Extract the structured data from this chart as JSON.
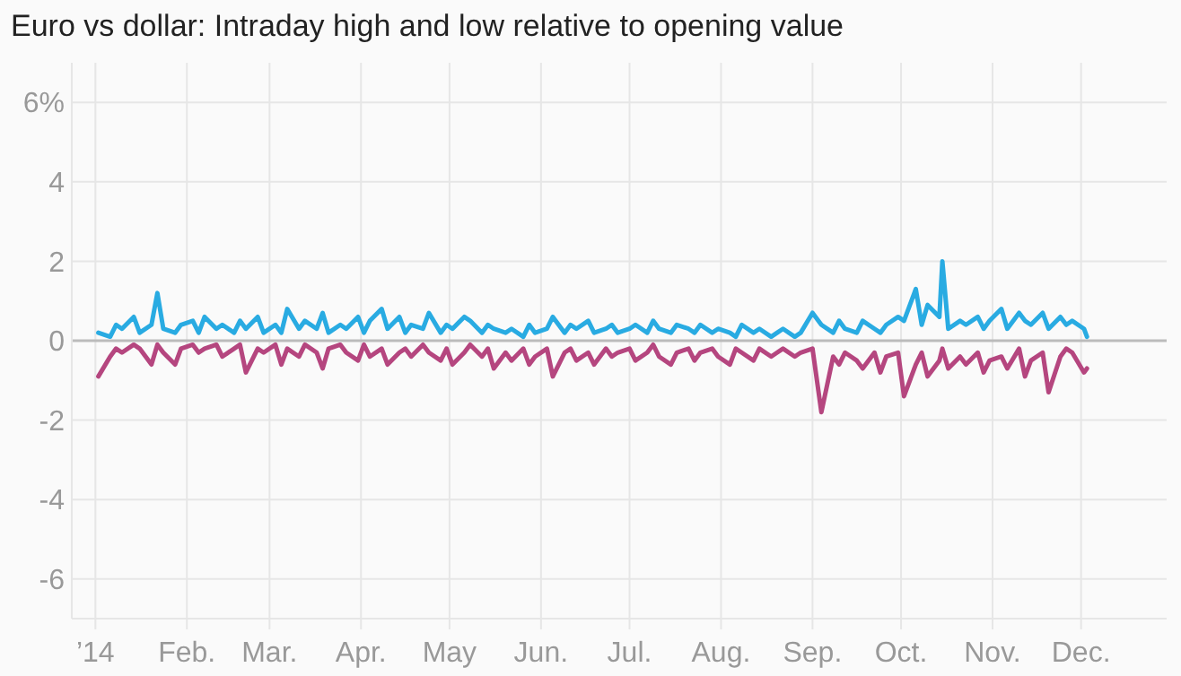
{
  "chart_data": {
    "type": "line",
    "title": "Euro vs dollar: Intraday high and low relative to opening value",
    "x": [
      "2014-01-02",
      "2014-01-06",
      "2014-01-08",
      "2014-01-10",
      "2014-01-14",
      "2014-01-16",
      "2014-01-20",
      "2014-01-22",
      "2014-01-24",
      "2014-01-28",
      "2014-01-30",
      "2014-02-03",
      "2014-02-05",
      "2014-02-07",
      "2014-02-11",
      "2014-02-13",
      "2014-02-17",
      "2014-02-19",
      "2014-02-21",
      "2014-02-25",
      "2014-02-27",
      "2014-03-03",
      "2014-03-05",
      "2014-03-07",
      "2014-03-11",
      "2014-03-13",
      "2014-03-17",
      "2014-03-19",
      "2014-03-21",
      "2014-03-25",
      "2014-03-27",
      "2014-03-31",
      "2014-04-02",
      "2014-04-04",
      "2014-04-08",
      "2014-04-10",
      "2014-04-14",
      "2014-04-16",
      "2014-04-18",
      "2014-04-22",
      "2014-04-24",
      "2014-04-28",
      "2014-04-30",
      "2014-05-02",
      "2014-05-06",
      "2014-05-08",
      "2014-05-12",
      "2014-05-14",
      "2014-05-16",
      "2014-05-20",
      "2014-05-22",
      "2014-05-26",
      "2014-05-28",
      "2014-05-30",
      "2014-06-03",
      "2014-06-05",
      "2014-06-09",
      "2014-06-11",
      "2014-06-13",
      "2014-06-17",
      "2014-06-19",
      "2014-06-23",
      "2014-06-25",
      "2014-06-27",
      "2014-07-01",
      "2014-07-03",
      "2014-07-07",
      "2014-07-09",
      "2014-07-11",
      "2014-07-15",
      "2014-07-17",
      "2014-07-21",
      "2014-07-23",
      "2014-07-25",
      "2014-07-29",
      "2014-07-31",
      "2014-08-04",
      "2014-08-06",
      "2014-08-08",
      "2014-08-12",
      "2014-08-14",
      "2014-08-18",
      "2014-08-20",
      "2014-08-22",
      "2014-08-26",
      "2014-08-28",
      "2014-09-01",
      "2014-09-04",
      "2014-09-08",
      "2014-09-10",
      "2014-09-12",
      "2014-09-16",
      "2014-09-18",
      "2014-09-22",
      "2014-09-24",
      "2014-09-26",
      "2014-09-30",
      "2014-10-02",
      "2014-10-06",
      "2014-10-08",
      "2014-10-10",
      "2014-10-14",
      "2014-10-15",
      "2014-10-17",
      "2014-10-21",
      "2014-10-23",
      "2014-10-27",
      "2014-10-29",
      "2014-10-31",
      "2014-11-04",
      "2014-11-06",
      "2014-11-10",
      "2014-11-12",
      "2014-11-14",
      "2014-11-18",
      "2014-11-20",
      "2014-11-24",
      "2014-11-26",
      "2014-11-28",
      "2014-12-02",
      "2014-12-03"
    ],
    "series": [
      {
        "color": "#29abe2",
        "values": [
          0.2,
          0.1,
          0.4,
          0.3,
          0.6,
          0.2,
          0.4,
          1.2,
          0.3,
          0.2,
          0.4,
          0.5,
          0.2,
          0.6,
          0.3,
          0.4,
          0.2,
          0.5,
          0.3,
          0.6,
          0.2,
          0.4,
          0.2,
          0.8,
          0.3,
          0.5,
          0.3,
          0.7,
          0.2,
          0.4,
          0.3,
          0.6,
          0.2,
          0.5,
          0.8,
          0.3,
          0.6,
          0.2,
          0.4,
          0.3,
          0.7,
          0.2,
          0.4,
          0.3,
          0.6,
          0.5,
          0.2,
          0.4,
          0.3,
          0.2,
          0.3,
          0.1,
          0.4,
          0.2,
          0.3,
          0.6,
          0.2,
          0.4,
          0.3,
          0.5,
          0.2,
          0.3,
          0.4,
          0.2,
          0.3,
          0.4,
          0.2,
          0.5,
          0.3,
          0.2,
          0.4,
          0.3,
          0.2,
          0.4,
          0.2,
          0.3,
          0.2,
          0.1,
          0.4,
          0.2,
          0.3,
          0.1,
          0.2,
          0.3,
          0.1,
          0.2,
          0.7,
          0.4,
          0.2,
          0.5,
          0.3,
          0.2,
          0.5,
          0.3,
          0.2,
          0.4,
          0.6,
          0.5,
          1.3,
          0.4,
          0.9,
          0.6,
          2.0,
          0.3,
          0.5,
          0.4,
          0.6,
          0.3,
          0.5,
          0.8,
          0.3,
          0.7,
          0.5,
          0.4,
          0.7,
          0.3,
          0.6,
          0.4,
          0.5,
          0.3,
          0.1
        ]
      },
      {
        "color": "#b5467f",
        "values": [
          -0.9,
          -0.4,
          -0.2,
          -0.3,
          -0.1,
          -0.2,
          -0.6,
          -0.1,
          -0.3,
          -0.6,
          -0.2,
          -0.1,
          -0.3,
          -0.2,
          -0.1,
          -0.4,
          -0.2,
          -0.1,
          -0.8,
          -0.2,
          -0.3,
          -0.1,
          -0.6,
          -0.2,
          -0.4,
          -0.1,
          -0.3,
          -0.7,
          -0.2,
          -0.1,
          -0.3,
          -0.5,
          -0.1,
          -0.4,
          -0.2,
          -0.6,
          -0.3,
          -0.2,
          -0.4,
          -0.1,
          -0.3,
          -0.5,
          -0.2,
          -0.6,
          -0.3,
          -0.1,
          -0.4,
          -0.2,
          -0.7,
          -0.3,
          -0.5,
          -0.2,
          -0.6,
          -0.4,
          -0.2,
          -0.9,
          -0.3,
          -0.2,
          -0.5,
          -0.3,
          -0.6,
          -0.2,
          -0.4,
          -0.3,
          -0.2,
          -0.5,
          -0.3,
          -0.1,
          -0.4,
          -0.6,
          -0.3,
          -0.2,
          -0.5,
          -0.3,
          -0.2,
          -0.4,
          -0.6,
          -0.2,
          -0.3,
          -0.5,
          -0.2,
          -0.4,
          -0.3,
          -0.2,
          -0.4,
          -0.3,
          -0.2,
          -1.8,
          -0.4,
          -0.6,
          -0.3,
          -0.5,
          -0.7,
          -0.3,
          -0.8,
          -0.4,
          -0.3,
          -1.4,
          -0.6,
          -0.3,
          -0.9,
          -0.5,
          -0.2,
          -0.7,
          -0.4,
          -0.6,
          -0.3,
          -0.8,
          -0.5,
          -0.4,
          -0.7,
          -0.2,
          -0.9,
          -0.5,
          -0.3,
          -1.3,
          -0.4,
          -0.2,
          -0.3,
          -0.8,
          -0.7
        ]
      }
    ],
    "xlim": [
      "2013-12-24",
      "2014-12-30"
    ],
    "xticks": [
      {
        "value": "2014-01-01",
        "label": "’14"
      },
      {
        "value": "2014-02-01",
        "label": "Feb."
      },
      {
        "value": "2014-03-01",
        "label": "Mar."
      },
      {
        "value": "2014-04-01",
        "label": "Apr."
      },
      {
        "value": "2014-05-01",
        "label": "May"
      },
      {
        "value": "2014-06-01",
        "label": "Jun."
      },
      {
        "value": "2014-07-01",
        "label": "Jul."
      },
      {
        "value": "2014-08-01",
        "label": "Aug."
      },
      {
        "value": "2014-09-01",
        "label": "Sep."
      },
      {
        "value": "2014-10-01",
        "label": "Oct."
      },
      {
        "value": "2014-11-01",
        "label": "Nov."
      },
      {
        "value": "2014-12-01",
        "label": "Dec."
      }
    ],
    "ylim": [
      -7,
      7
    ],
    "yticks": [
      {
        "value": 6,
        "label": "6%"
      },
      4,
      2,
      0,
      -2,
      -4,
      -6
    ],
    "grid": true,
    "marker": "none",
    "line_style": "solid"
  }
}
